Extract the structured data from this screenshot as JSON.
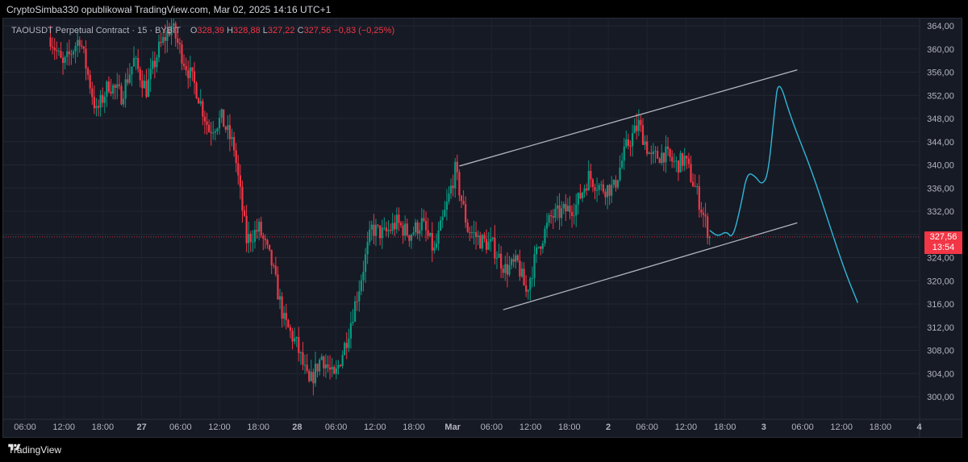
{
  "header": {
    "publisher_line": "CryptoSimba330 opublikował TradingView.com, Mar 02, 2025 14:16 UTC+1"
  },
  "legend": {
    "symbol": "TAOUSDT Perpetual Contract · 15 · BYBIT",
    "o_label": "O",
    "o_value": "328,39",
    "h_label": "H",
    "h_value": "328,88",
    "l_label": "L",
    "l_value": "327,22",
    "c_label": "C",
    "c_value": "327,56",
    "change": "−0,83 (−0,25%)"
  },
  "price_tag": {
    "price": "327,56",
    "countdown": "13:54"
  },
  "footer": {
    "brand": "TradingView"
  },
  "colors": {
    "up": "#089981",
    "down": "#f23645",
    "channel": "#b2b5be",
    "projection": "#2fb7d6",
    "background": "#161a25"
  },
  "chart_data": {
    "type": "candlestick",
    "y_ticks": [
      "364,00",
      "360,00",
      "356,00",
      "352,00",
      "348,00",
      "344,00",
      "340,00",
      "336,00",
      "332,00",
      "328,00",
      "324,00",
      "320,00",
      "316,00",
      "312,00",
      "308,00",
      "304,00",
      "300,00"
    ],
    "x_ticks": [
      "06:00",
      "12:00",
      "18:00",
      "27",
      "06:00",
      "12:00",
      "18:00",
      "28",
      "06:00",
      "12:00",
      "18:00",
      "Mar",
      "06:00",
      "12:00",
      "18:00",
      "2",
      "06:00",
      "12:00",
      "18:00",
      "3",
      "06:00",
      "12:00",
      "18:00",
      "4"
    ],
    "ylim": [
      296.5,
      365.5
    ],
    "last_price": 327.56,
    "anchors": [
      {
        "x": 0,
        "y": 362
      },
      {
        "x": 6,
        "y": 357
      },
      {
        "x": 14,
        "y": 362
      },
      {
        "x": 22,
        "y": 349
      },
      {
        "x": 28,
        "y": 354
      },
      {
        "x": 34,
        "y": 352
      },
      {
        "x": 40,
        "y": 358
      },
      {
        "x": 46,
        "y": 353
      },
      {
        "x": 52,
        "y": 360
      },
      {
        "x": 58,
        "y": 364
      },
      {
        "x": 64,
        "y": 358
      },
      {
        "x": 70,
        "y": 353
      },
      {
        "x": 76,
        "y": 346
      },
      {
        "x": 82,
        "y": 348
      },
      {
        "x": 88,
        "y": 343
      },
      {
        "x": 94,
        "y": 327
      },
      {
        "x": 100,
        "y": 329
      },
      {
        "x": 106,
        "y": 323
      },
      {
        "x": 112,
        "y": 313
      },
      {
        "x": 118,
        "y": 309
      },
      {
        "x": 124,
        "y": 302
      },
      {
        "x": 130,
        "y": 307
      },
      {
        "x": 136,
        "y": 303
      },
      {
        "x": 142,
        "y": 310
      },
      {
        "x": 148,
        "y": 319
      },
      {
        "x": 154,
        "y": 329
      },
      {
        "x": 160,
        "y": 328
      },
      {
        "x": 166,
        "y": 330
      },
      {
        "x": 172,
        "y": 328
      },
      {
        "x": 178,
        "y": 330
      },
      {
        "x": 184,
        "y": 325
      },
      {
        "x": 190,
        "y": 333
      },
      {
        "x": 194,
        "y": 339
      },
      {
        "x": 200,
        "y": 329
      },
      {
        "x": 206,
        "y": 327
      },
      {
        "x": 212,
        "y": 326
      },
      {
        "x": 218,
        "y": 322
      },
      {
        "x": 224,
        "y": 323
      },
      {
        "x": 228,
        "y": 318
      },
      {
        "x": 234,
        "y": 326
      },
      {
        "x": 240,
        "y": 331
      },
      {
        "x": 246,
        "y": 332
      },
      {
        "x": 252,
        "y": 333
      },
      {
        "x": 258,
        "y": 338
      },
      {
        "x": 264,
        "y": 336
      },
      {
        "x": 270,
        "y": 336
      },
      {
        "x": 276,
        "y": 343
      },
      {
        "x": 282,
        "y": 347
      },
      {
        "x": 288,
        "y": 341
      },
      {
        "x": 294,
        "y": 342
      },
      {
        "x": 300,
        "y": 340
      },
      {
        "x": 304,
        "y": 341
      },
      {
        "x": 310,
        "y": 335
      },
      {
        "x": 316,
        "y": 327.6
      }
    ],
    "channel": {
      "upper": [
        {
          "x": 196,
          "y": 339.8
        },
        {
          "x": 358,
          "y": 356.4
        }
      ],
      "lower": [
        {
          "x": 217,
          "y": 315.0
        },
        {
          "x": 358,
          "y": 330.0
        }
      ]
    },
    "projection": [
      {
        "x": 316,
        "y": 328.7
      },
      {
        "x": 320,
        "y": 327.6
      },
      {
        "x": 324,
        "y": 328.6
      },
      {
        "x": 327,
        "y": 327.2
      },
      {
        "x": 331,
        "y": 333.0
      },
      {
        "x": 334,
        "y": 338.8
      },
      {
        "x": 338,
        "y": 338.0
      },
      {
        "x": 341,
        "y": 336.5
      },
      {
        "x": 344,
        "y": 338.2
      },
      {
        "x": 347,
        "y": 349.0
      },
      {
        "x": 349,
        "y": 355.2
      },
      {
        "x": 355,
        "y": 348.0
      },
      {
        "x": 365,
        "y": 339.0
      },
      {
        "x": 374,
        "y": 329.0
      },
      {
        "x": 381,
        "y": 321.5
      },
      {
        "x": 387,
        "y": 316.2
      }
    ],
    "x_domain": [
      -18,
      412
    ]
  }
}
